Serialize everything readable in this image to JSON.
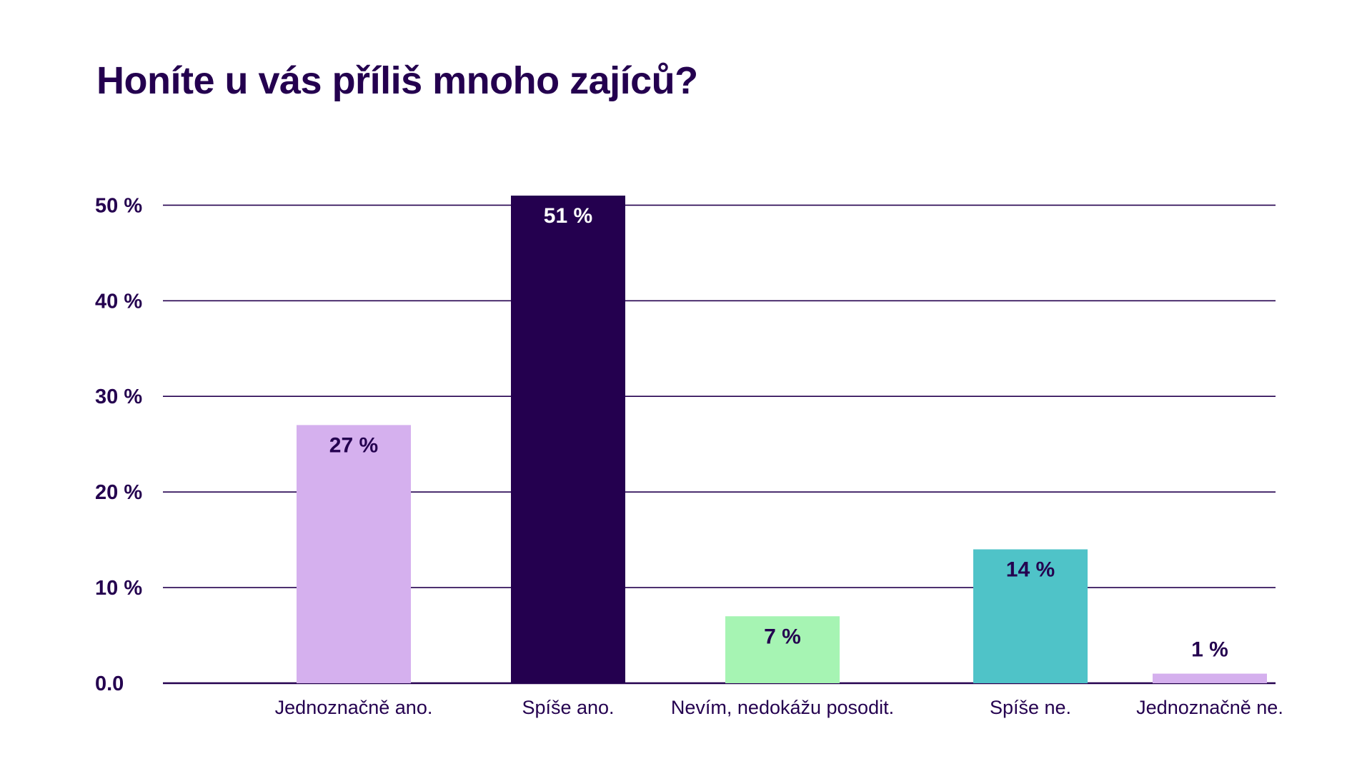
{
  "chart_data": {
    "type": "bar",
    "title": "Honíte u vás příliš mnoho zajíců?",
    "categories": [
      "Jednoznačně ano.",
      "Spíše ano.",
      "Nevím, nedokážu posodit.",
      "Spíše ne.",
      "Jednoznačně ne."
    ],
    "values": [
      27,
      51,
      7,
      14,
      1
    ],
    "value_labels": [
      "27 %",
      "51 %",
      "7 %",
      "14 %",
      "1 %"
    ],
    "colors": [
      "#d5b0ee",
      "#24004f",
      "#a6f4b3",
      "#4fc3c8",
      "#d5b0ee"
    ],
    "value_label_colors": [
      "#24004f",
      "#ffffff",
      "#24004f",
      "#24004f",
      "#24004f"
    ],
    "y_ticks": [
      0,
      10,
      20,
      30,
      40,
      50
    ],
    "y_tick_labels": [
      "0.0",
      "10 %",
      "20 %",
      "30 %",
      "40 %",
      "50 %"
    ],
    "ylim": [
      0,
      51
    ],
    "grid": true,
    "xlabel": "",
    "ylabel": ""
  }
}
